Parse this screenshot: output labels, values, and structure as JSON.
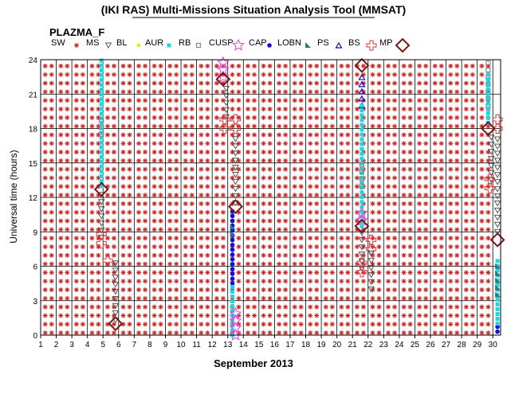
{
  "title": "(IKI RAS) Multi-Missions Situation Analysis Tool (MMSAT)",
  "subtitle": "PLAZMA_F",
  "legend": [
    {
      "label": "SW",
      "symbol": "none",
      "color": "#000000"
    },
    {
      "label": "MS",
      "symbol": "asterisk",
      "color": "#cc2222"
    },
    {
      "label": "BL",
      "symbol": "triangle-down",
      "color": "#555555"
    },
    {
      "label": "AUR",
      "symbol": "dot",
      "color": "#e8e830"
    },
    {
      "label": "RB",
      "symbol": "square",
      "color": "#22d4e0"
    },
    {
      "label": "CUSP",
      "symbol": "small-square",
      "color": "#888888"
    },
    {
      "label": "CAP",
      "symbol": "star",
      "color": "#dd44dd"
    },
    {
      "label": "LOBN",
      "symbol": "circle",
      "color": "#1010dd"
    },
    {
      "label": "PS",
      "symbol": "flag",
      "color": "#2a7a7a"
    },
    {
      "label": "BS",
      "symbol": "triangle-up",
      "color": "#1010aa"
    },
    {
      "label": "MP",
      "symbol": "cross",
      "color": "#dd3333"
    },
    {
      "label": "",
      "symbol": "diamond",
      "color": "#7a1515"
    }
  ],
  "chart_data": {
    "type": "scatter",
    "title": "(IKI RAS) Multi-Missions Situation Analysis Tool (MMSAT)",
    "subtitle": "PLAZMA_F",
    "xlabel": "September 2013",
    "ylabel": "Universal time (hours)",
    "xlim": [
      1,
      30.5
    ],
    "ylim": [
      0,
      24
    ],
    "x_ticks": [
      "1",
      "2",
      "3",
      "4",
      "5",
      "6",
      "7",
      "8",
      "9",
      "10",
      "11",
      "12",
      "13",
      "14",
      "15",
      "16",
      "17",
      "18",
      "19",
      "20",
      "21",
      "22",
      "23",
      "24",
      "25",
      "26",
      "27",
      "28",
      "29",
      "30"
    ],
    "y_ticks": [
      "0",
      "3",
      "6",
      "9",
      "12",
      "15",
      "18",
      "21",
      "24"
    ],
    "grid": true,
    "background_region": "MS",
    "background_region_days": [
      1,
      30.5
    ],
    "segments": [
      {
        "region": "RB",
        "day": 4.9,
        "from": 13,
        "to": 24
      },
      {
        "region": "CUSP",
        "day": 4.9,
        "from": 17.5,
        "to": 19
      },
      {
        "region": "BL",
        "day": 4.9,
        "from": 8.5,
        "to": 12.5
      },
      {
        "region": "MP",
        "day": 4.9,
        "from": 8,
        "to": 9.5
      },
      {
        "region": "MP",
        "day": 5.3,
        "from": 6.5,
        "to": 7
      },
      {
        "region": "BL",
        "day": 5.8,
        "from": 1.3,
        "to": 6.5
      },
      {
        "region": "CAP",
        "day": 12.7,
        "from": 22.5,
        "to": 24
      },
      {
        "region": "BL",
        "day": 12.9,
        "from": 19,
        "to": 22
      },
      {
        "region": "MP",
        "day": 12.8,
        "from": 18,
        "to": 18.8
      },
      {
        "region": "MP",
        "day": 13.5,
        "from": 18,
        "to": 18.8
      },
      {
        "region": "BL",
        "day": 13.5,
        "from": 11.5,
        "to": 17.5
      },
      {
        "region": "LOBN",
        "day": 13.3,
        "from": 4.5,
        "to": 11
      },
      {
        "region": "PS",
        "day": 13.3,
        "from": 8.8,
        "to": 9.5
      },
      {
        "region": "RB",
        "day": 13.3,
        "from": 0,
        "to": 4.5
      },
      {
        "region": "CAP",
        "day": 13.5,
        "from": 0,
        "to": 2
      },
      {
        "region": "BS",
        "day": 21.6,
        "from": 20,
        "to": 23
      },
      {
        "region": "RB",
        "day": 21.6,
        "from": 9.5,
        "to": 20
      },
      {
        "region": "CUSP",
        "day": 21.6,
        "from": 13,
        "to": 15
      },
      {
        "region": "CAP",
        "day": 21.6,
        "from": 10,
        "to": 11
      },
      {
        "region": "MP",
        "day": 21.6,
        "from": 5.5,
        "to": 6.3
      },
      {
        "region": "BL",
        "day": 21.6,
        "from": 5.8,
        "to": 9.3
      },
      {
        "region": "MP",
        "day": 22.2,
        "from": 7.5,
        "to": 8.3
      },
      {
        "region": "BL",
        "day": 22.2,
        "from": 4,
        "to": 7.5
      },
      {
        "region": "CUSP",
        "day": 29.7,
        "from": 20,
        "to": 24
      },
      {
        "region": "RB",
        "day": 29.7,
        "from": 18.5,
        "to": 23
      },
      {
        "region": "BL",
        "day": 29.9,
        "from": 13.5,
        "to": 17.5
      },
      {
        "region": "MP",
        "day": 29.8,
        "from": 12.8,
        "to": 13.6
      },
      {
        "region": "MP",
        "day": 30.3,
        "from": 18,
        "to": 18.8
      },
      {
        "region": "BL",
        "day": 30.3,
        "from": 9,
        "to": 17.5
      },
      {
        "region": "LOBN",
        "day": 30.3,
        "from": 0.3,
        "to": 0.8
      },
      {
        "region": "RB",
        "day": 30.3,
        "from": 1,
        "to": 6.8
      },
      {
        "region": "PS",
        "day": 30.3,
        "from": 3.5,
        "to": 6.5
      }
    ],
    "mp_crossings": [
      {
        "day": 5.8,
        "ut": 1
      },
      {
        "day": 4.9,
        "ut": 12.7
      },
      {
        "day": 12.7,
        "ut": 22.3
      },
      {
        "day": 13.5,
        "ut": 11.2
      },
      {
        "day": 21.6,
        "ut": 23.5
      },
      {
        "day": 21.6,
        "ut": 9.5
      },
      {
        "day": 29.7,
        "ut": 18
      },
      {
        "day": 30.3,
        "ut": 8.3
      }
    ]
  }
}
